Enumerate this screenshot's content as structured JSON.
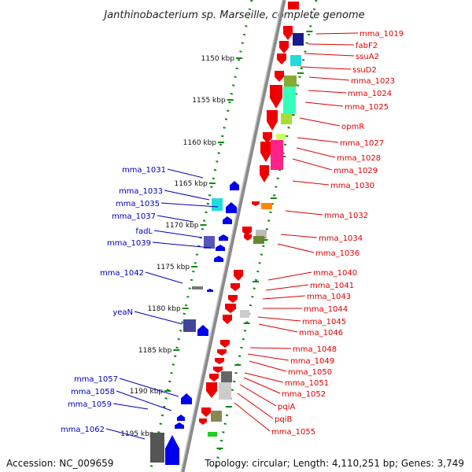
{
  "title": "Janthinobacterium sp. Marseille, complete genome",
  "footer": {
    "accession": "Accession: NC_009659",
    "stats": "Topology: circular; Length: 4,110,251 bp; Genes: 3,749"
  },
  "colors": {
    "forward_strand": "#ee0000",
    "reverse_strand": "#0000ee",
    "backbone": "#999999",
    "ticks": "#118811"
  },
  "kbp_ticks": [
    "1150 kbp",
    "1155 kbp",
    "1160 kbp",
    "1165 kbp",
    "1170 kbp",
    "1175 kbp",
    "1180 kbp",
    "1185 kbp",
    "1190 kbp",
    "1195 kbp"
  ],
  "left_labels": [
    "mma_1031",
    "mma_1033",
    "mma_1035",
    "mma_1037",
    "fadL",
    "mma_1039",
    "mma_1042",
    "yeaN",
    "mma_1057",
    "mma_1058",
    "mma_1059",
    "mma_1062"
  ],
  "right_labels": [
    "mma_1019",
    "fabF2",
    "ssuA2",
    "ssuD2",
    "mma_1023",
    "mma_1024",
    "mma_1025",
    "opmR",
    "mma_1027",
    "mma_1028",
    "mma_1029",
    "mma_1030",
    "mma_1032",
    "mma_1034",
    "mma_1036",
    "mma_1040",
    "mma_1041",
    "mma_1043",
    "mma_1044",
    "mma_1045",
    "mma_1046",
    "mma_1048",
    "mma_1049",
    "mma_1050",
    "mma_1051",
    "mma_1052",
    "pqiA",
    "pqiB",
    "mma_1055"
  ]
}
